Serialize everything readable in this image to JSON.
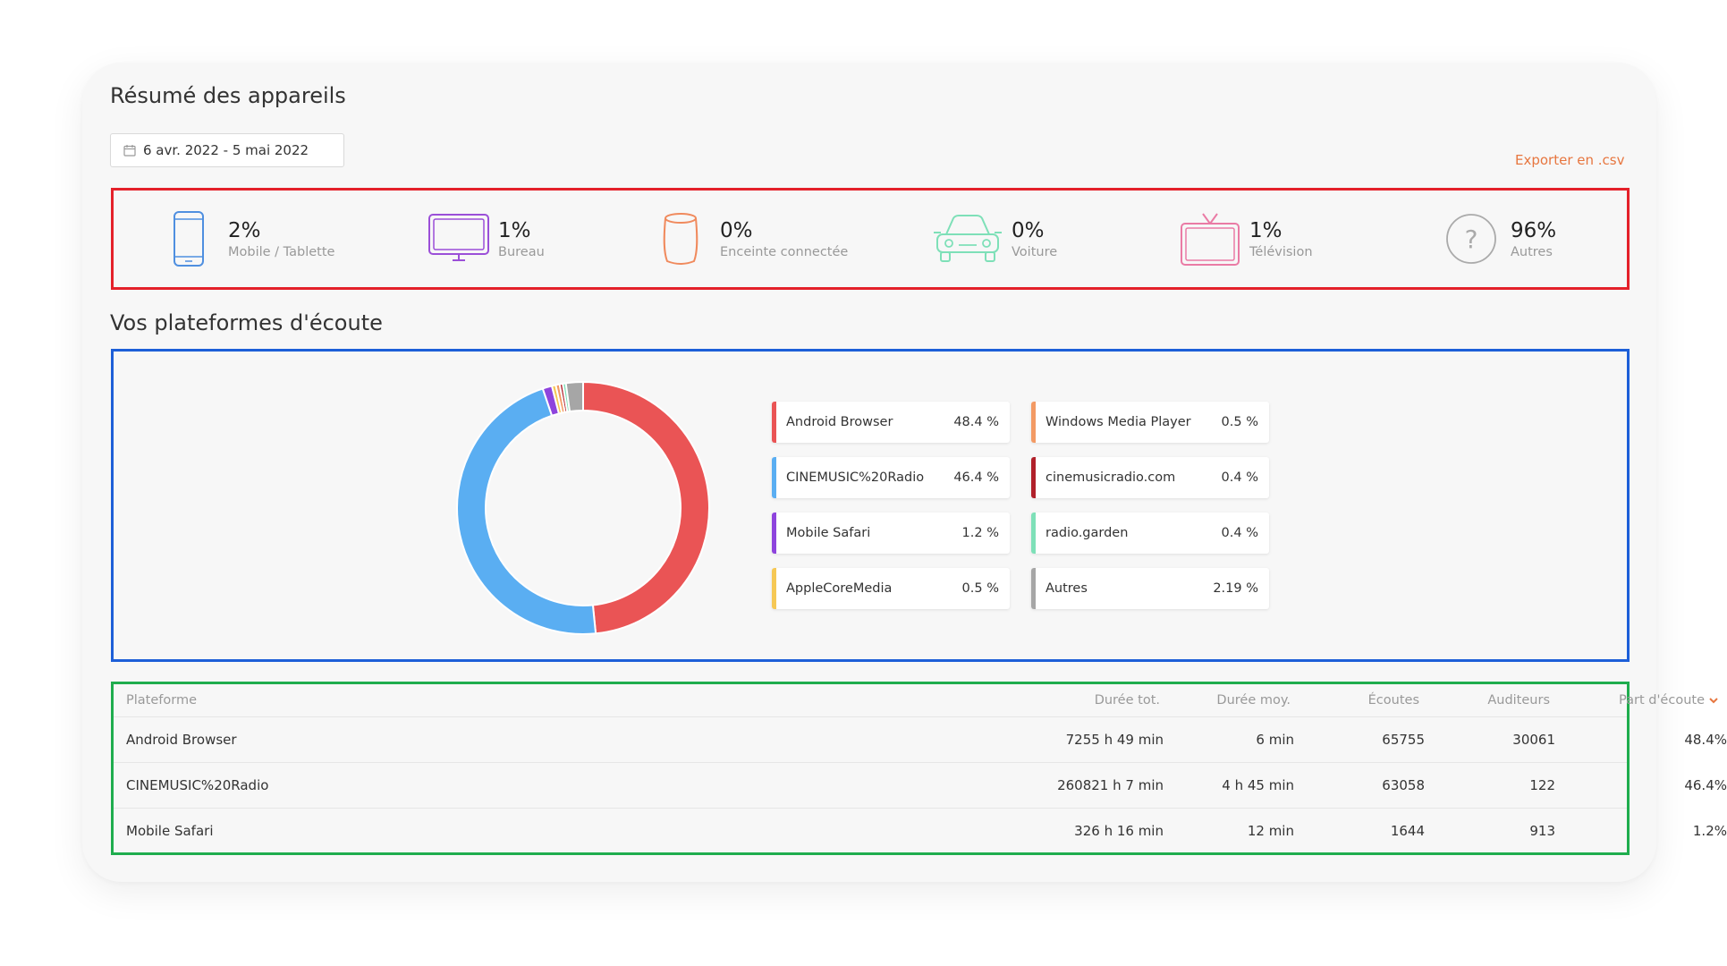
{
  "devices_section": {
    "title": "Résumé des appareils",
    "date_range": "6 avr. 2022 - 5 mai 2022",
    "export_label": "Exporter en .csv",
    "items": [
      {
        "icon": "mobile-icon",
        "percent": "2%",
        "label": "Mobile / Tablette",
        "color": "#4f8fe0"
      },
      {
        "icon": "desktop-icon",
        "percent": "1%",
        "label": "Bureau",
        "color": "#9b4fd8"
      },
      {
        "icon": "smart-speaker-icon",
        "percent": "0%",
        "label": "Enceinte connectée",
        "color": "#f08a5d"
      },
      {
        "icon": "car-icon",
        "percent": "0%",
        "label": "Voiture",
        "color": "#7ee0b8"
      },
      {
        "icon": "tv-icon",
        "percent": "1%",
        "label": "Télévision",
        "color": "#ea7ba5"
      },
      {
        "icon": "question-icon",
        "percent": "96%",
        "label": "Autres",
        "color": "#aaaaaa"
      }
    ]
  },
  "platforms_section": {
    "title": "Vos plateformes d'écoute",
    "legend": [
      {
        "name": "Android Browser",
        "value": "48.4 %",
        "color": "#ea5455"
      },
      {
        "name": "CINEMUSIC%20Radio",
        "value": "46.4 %",
        "color": "#5aaef2"
      },
      {
        "name": "Mobile Safari",
        "value": "1.2 %",
        "color": "#8e44dd"
      },
      {
        "name": "AppleCoreMedia",
        "value": "0.5 %",
        "color": "#f6c855"
      },
      {
        "name": "Windows Media Player",
        "value": "0.5 %",
        "color": "#f39a64"
      },
      {
        "name": "cinemusicradio.com",
        "value": "0.4 %",
        "color": "#b0202a"
      },
      {
        "name": "radio.garden",
        "value": "0.4 %",
        "color": "#7ee0b8"
      },
      {
        "name": "Autres",
        "value": "2.19 %",
        "color": "#a6a6a6"
      }
    ]
  },
  "chart_data": {
    "type": "pie",
    "labels": [
      "Android Browser",
      "CINEMUSIC%20Radio",
      "Mobile Safari",
      "AppleCoreMedia",
      "Windows Media Player",
      "cinemusicradio.com",
      "radio.garden",
      "Autres"
    ],
    "values": [
      48.4,
      46.4,
      1.2,
      0.5,
      0.5,
      0.4,
      0.4,
      2.19
    ],
    "colors": [
      "#ea5455",
      "#5aaef2",
      "#8e44dd",
      "#f6c855",
      "#f39a64",
      "#b0202a",
      "#7ee0b8",
      "#a6a6a6"
    ],
    "donut": true
  },
  "table": {
    "headers": [
      "Plateforme",
      "Durée tot.",
      "Durée moy.",
      "Écoutes",
      "Auditeurs",
      "Part d'écoute"
    ],
    "sort_column": "Part d'écoute",
    "sort_color": "#e7763f",
    "rows": [
      [
        "Android Browser",
        "7255 h 49 min",
        "6 min",
        "65755",
        "30061",
        "48.4%"
      ],
      [
        "CINEMUSIC%20Radio",
        "260821 h 7 min",
        "4 h 45 min",
        "63058",
        "122",
        "46.4%"
      ],
      [
        "Mobile Safari",
        "326 h 16 min",
        "12 min",
        "1644",
        "913",
        "1.2%"
      ]
    ]
  }
}
